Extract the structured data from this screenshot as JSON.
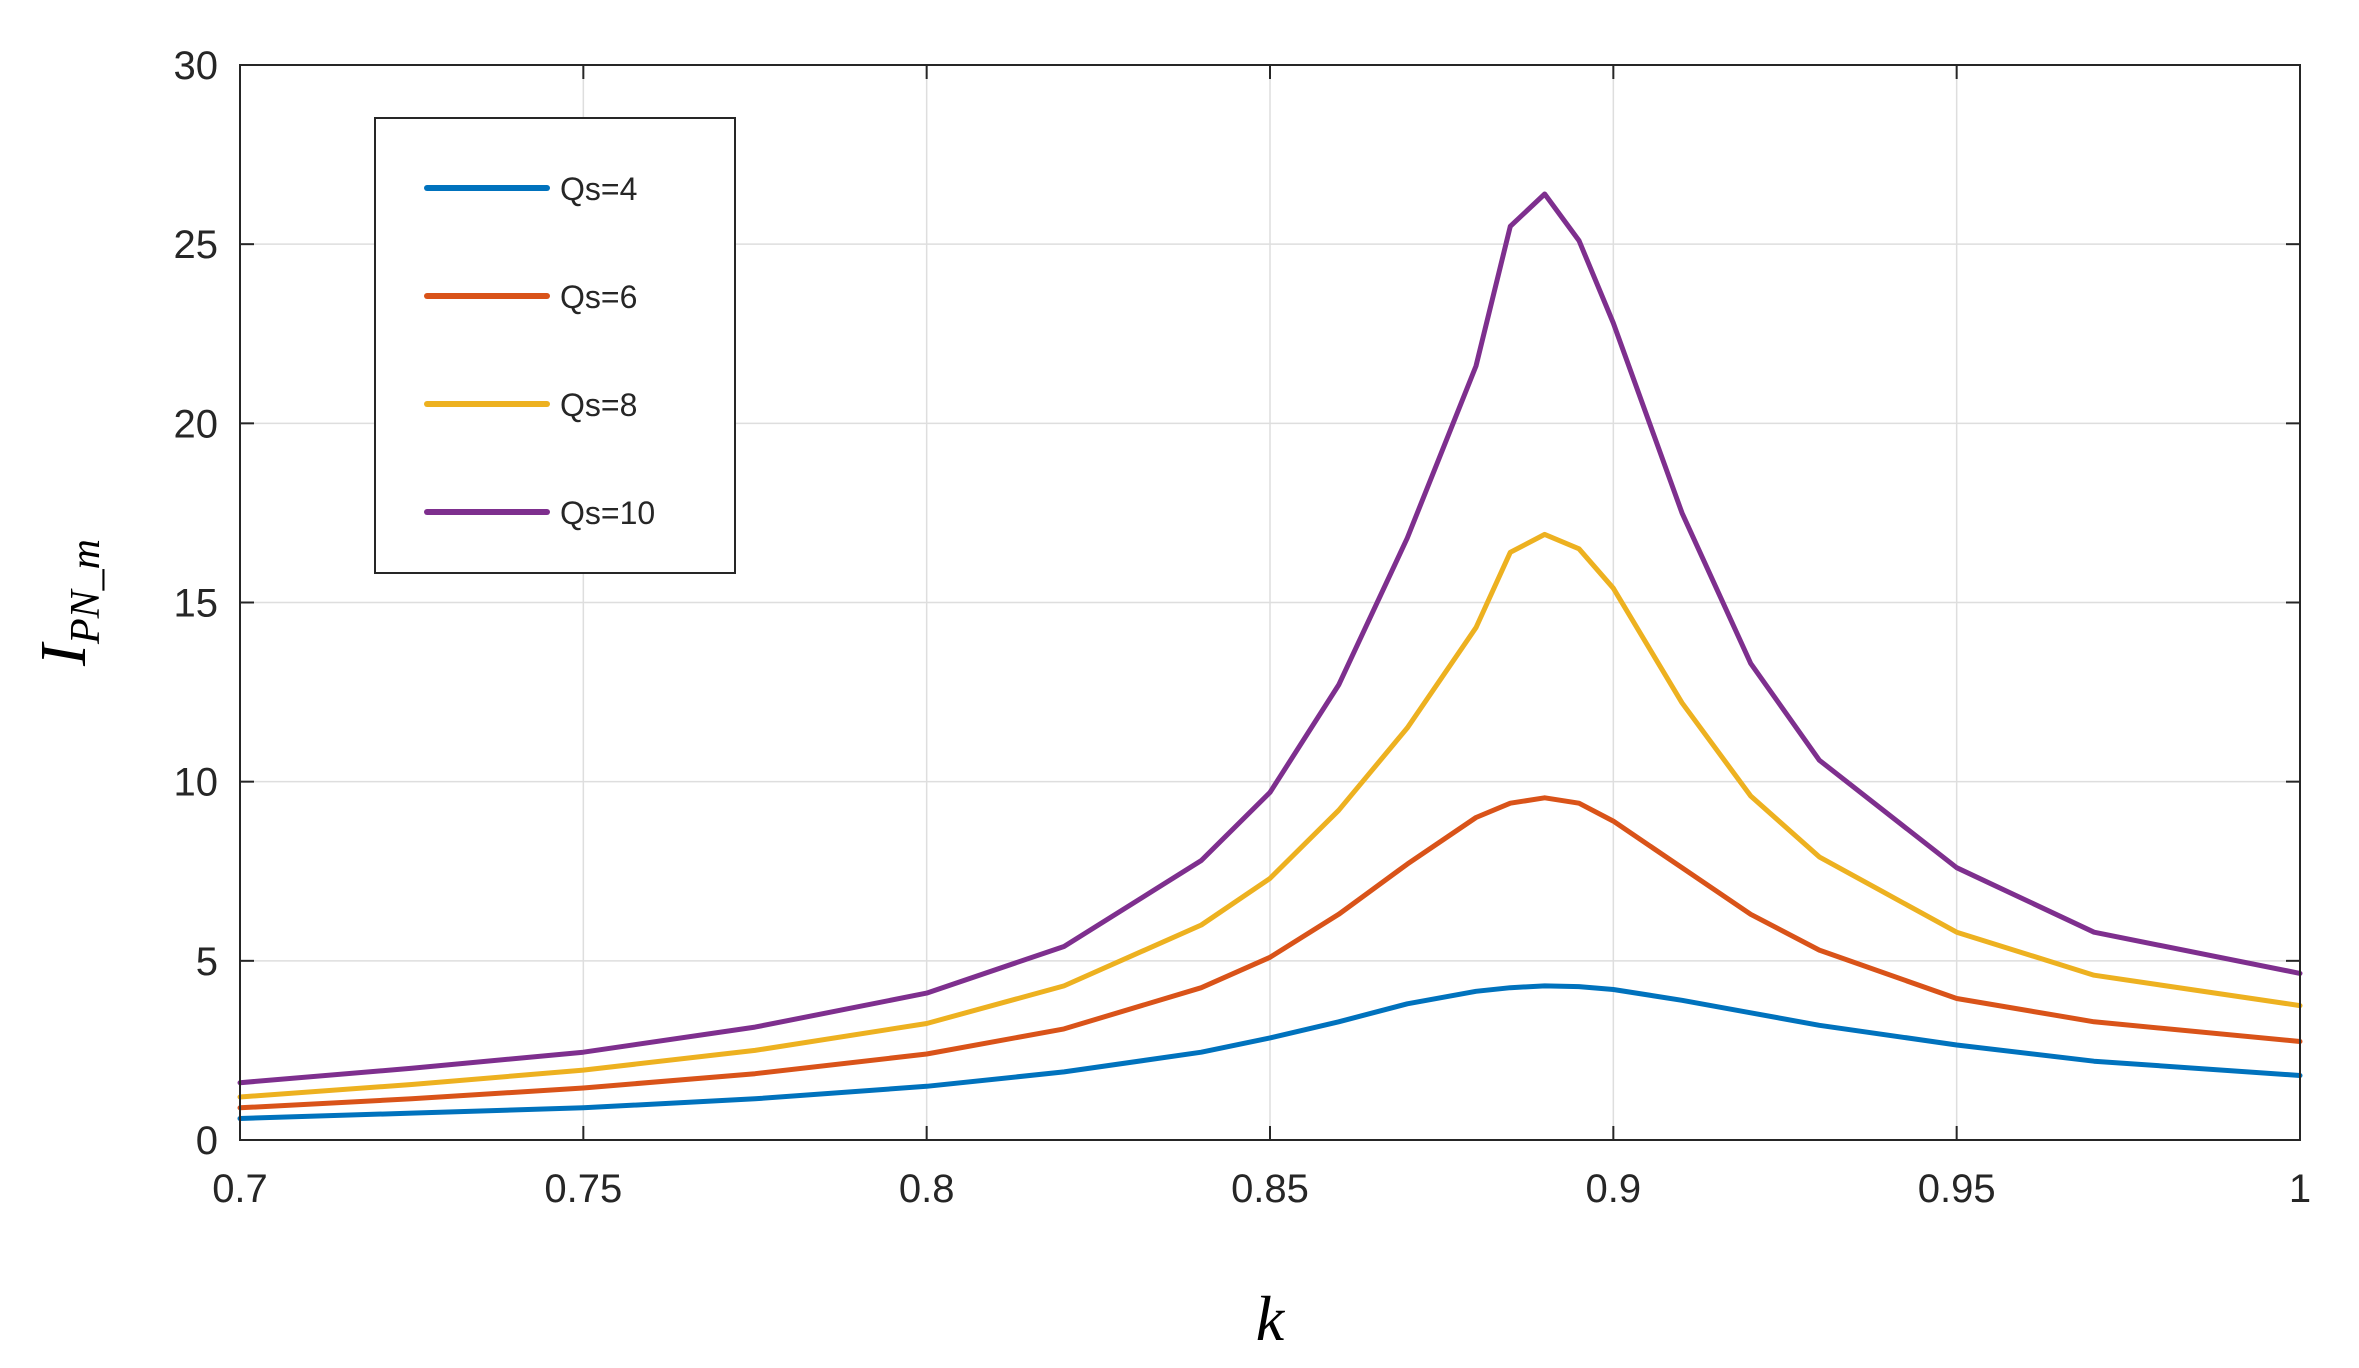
{
  "chart_data": {
    "type": "line",
    "title": "",
    "xlabel": "k",
    "ylabel_main": "I",
    "ylabel_subscript": "PN_m",
    "xlim": [
      0.7,
      1.0
    ],
    "ylim": [
      0,
      30
    ],
    "xticks": [
      0.7,
      0.75,
      0.8,
      0.85,
      0.9,
      0.95,
      1.0
    ],
    "xtick_labels": [
      "0.7",
      "0.75",
      "0.8",
      "0.85",
      "0.9",
      "0.95",
      "1"
    ],
    "yticks": [
      0,
      5,
      10,
      15,
      20,
      25,
      30
    ],
    "ytick_labels": [
      "0",
      "5",
      "10",
      "15",
      "20",
      "25",
      "30"
    ],
    "grid": true,
    "legend_position": "top-left",
    "x": [
      0.7,
      0.725,
      0.75,
      0.775,
      0.8,
      0.82,
      0.84,
      0.85,
      0.86,
      0.87,
      0.88,
      0.885,
      0.89,
      0.895,
      0.9,
      0.91,
      0.92,
      0.93,
      0.95,
      0.97,
      1.0
    ],
    "series": [
      {
        "name": "Qs=4",
        "color": "#0072BD",
        "values": [
          0.6,
          0.75,
          0.9,
          1.15,
          1.5,
          1.9,
          2.45,
          2.85,
          3.3,
          3.8,
          4.15,
          4.25,
          4.3,
          4.28,
          4.2,
          3.9,
          3.55,
          3.2,
          2.65,
          2.2,
          1.8
        ]
      },
      {
        "name": "Qs=6",
        "color": "#D95319",
        "values": [
          0.9,
          1.15,
          1.45,
          1.85,
          2.4,
          3.1,
          4.25,
          5.1,
          6.3,
          7.7,
          9.0,
          9.4,
          9.55,
          9.4,
          8.9,
          7.6,
          6.3,
          5.3,
          3.95,
          3.3,
          2.75
        ]
      },
      {
        "name": "Qs=8",
        "color": "#EDB120",
        "values": [
          1.2,
          1.55,
          1.95,
          2.5,
          3.25,
          4.3,
          6.0,
          7.3,
          9.2,
          11.5,
          14.3,
          16.4,
          16.9,
          16.5,
          15.4,
          12.2,
          9.6,
          7.9,
          5.8,
          4.6,
          3.75
        ]
      },
      {
        "name": "Qs=10",
        "color": "#7E2F8E",
        "values": [
          1.6,
          2.0,
          2.45,
          3.15,
          4.1,
          5.4,
          7.8,
          9.7,
          12.7,
          16.8,
          21.6,
          25.5,
          26.4,
          25.1,
          22.8,
          17.5,
          13.3,
          10.6,
          7.6,
          5.8,
          4.65
        ]
      }
    ]
  }
}
